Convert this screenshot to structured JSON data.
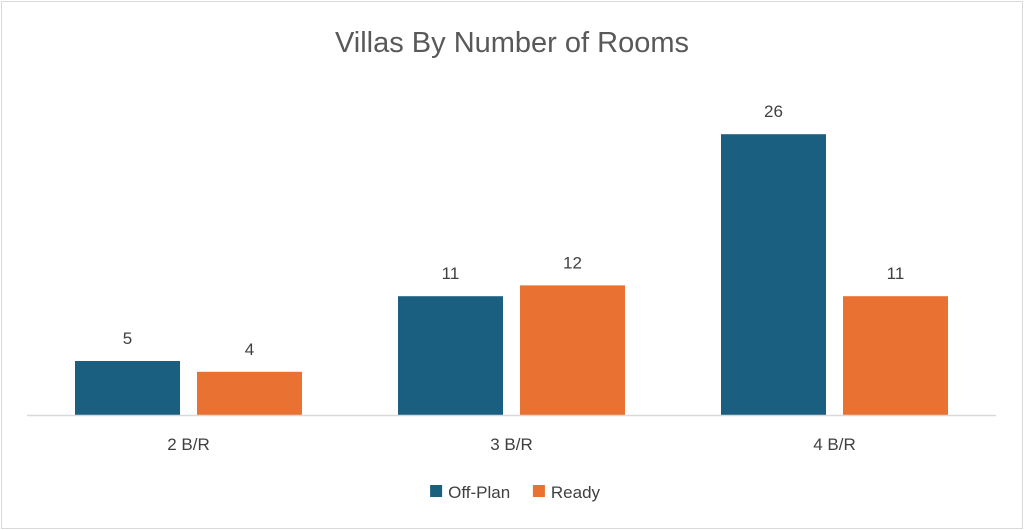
{
  "chart_data": {
    "type": "bar",
    "title": "Villas By Number of Rooms",
    "xlabel": "",
    "ylabel": "",
    "categories": [
      "2 B/R",
      "3 B/R",
      "4 B/R"
    ],
    "series": [
      {
        "name": "Off-Plan",
        "values": [
          5,
          11,
          26
        ],
        "color": "#1a5e80"
      },
      {
        "name": "Ready",
        "values": [
          4,
          12,
          11
        ],
        "color": "#e97132"
      }
    ],
    "ylim": [
      0,
      30
    ],
    "grid": false,
    "legend": "bottom",
    "data_labels": true
  }
}
